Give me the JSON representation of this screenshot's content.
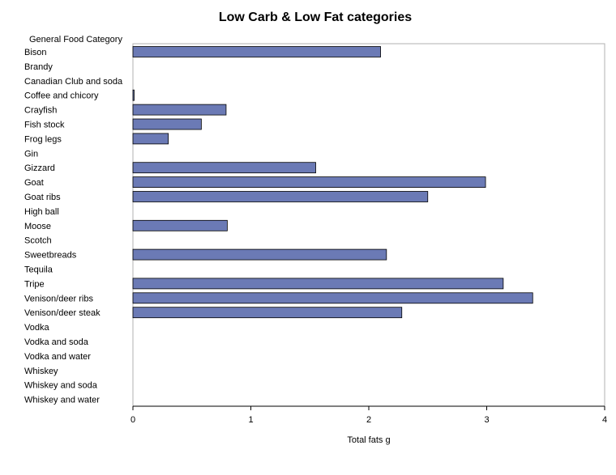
{
  "chart_data": {
    "type": "bar",
    "orientation": "horizontal",
    "title": "Low Carb & Low Fat categories",
    "ylabel": "General Food Category",
    "xlabel": "Total fats g",
    "xlim": [
      0,
      4
    ],
    "xticks": [
      "0",
      "1",
      "2",
      "3",
      "4"
    ],
    "grid": false,
    "bar_color": "#6B7AB5",
    "categories": [
      "Bison",
      "Brandy",
      "Canadian Club and soda",
      "Coffee and chicory",
      "Crayfish",
      "Fish stock",
      "Frog legs",
      "Gin",
      "Gizzard",
      "Goat",
      "Goat ribs",
      "High ball",
      "Moose",
      "Scotch",
      "Sweetbreads",
      "Tequila",
      "Tripe",
      "Venison/deer ribs",
      "Venison/deer steak",
      "Vodka",
      "Vodka and soda",
      "Vodka and water",
      "Whiskey",
      "Whiskey and soda",
      "Whiskey and water"
    ],
    "values": [
      2.1,
      0,
      0,
      0.01,
      0.79,
      0.58,
      0.3,
      0,
      1.55,
      2.99,
      2.5,
      0,
      0.8,
      0,
      2.15,
      0,
      3.14,
      3.39,
      2.28,
      0,
      0,
      0,
      0,
      0,
      0
    ]
  }
}
